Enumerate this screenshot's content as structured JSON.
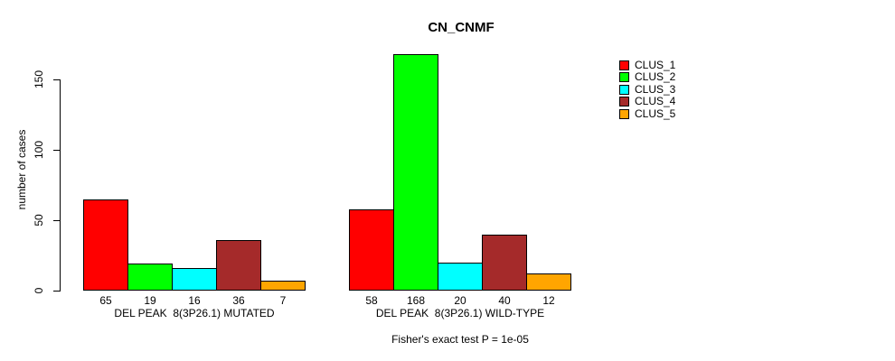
{
  "chart_data": {
    "type": "bar",
    "title": "CN_CNMF",
    "ylabel": "number of cases",
    "xlabel": "",
    "categories": [
      "DEL PEAK  8(3P26.1) MUTATED",
      "DEL PEAK  8(3P26.1) WILD-TYPE"
    ],
    "series": [
      {
        "name": "CLUS_1",
        "color": "#ff0000",
        "values": [
          65,
          58
        ]
      },
      {
        "name": "CLUS_2",
        "color": "#00ff00",
        "values": [
          19,
          168
        ]
      },
      {
        "name": "CLUS_3",
        "color": "#00ffff",
        "values": [
          16,
          20
        ]
      },
      {
        "name": "CLUS_4",
        "color": "#a52a2a",
        "values": [
          36,
          40
        ]
      },
      {
        "name": "CLUS_5",
        "color": "#ffa500",
        "values": [
          7,
          12
        ]
      }
    ],
    "yticks": [
      0,
      50,
      100,
      150
    ],
    "ylim": [
      0,
      150
    ],
    "grid": false,
    "legend_position": "top-right",
    "bar_value_labels": true,
    "bar_border_color": "#000000",
    "annotation": "Fisher's exact test P = 1e-05"
  }
}
